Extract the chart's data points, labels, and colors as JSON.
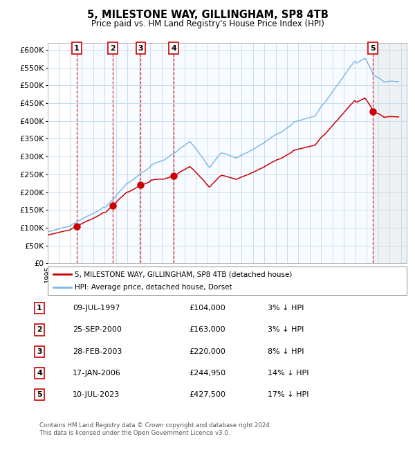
{
  "title": "5, MILESTONE WAY, GILLINGHAM, SP8 4TB",
  "subtitle": "Price paid vs. HM Land Registry's House Price Index (HPI)",
  "xlim": [
    1995.0,
    2026.5
  ],
  "ylim": [
    0,
    620000
  ],
  "ytick_labels": [
    "£0",
    "£50K",
    "£100K",
    "£150K",
    "£200K",
    "£250K",
    "£300K",
    "£350K",
    "£400K",
    "£450K",
    "£500K",
    "£550K",
    "£600K"
  ],
  "sales": [
    {
      "num": 1,
      "date": "09-JUL-1997",
      "year": 1997.53,
      "price": 104000,
      "hpi_pct": "3% ↓ HPI"
    },
    {
      "num": 2,
      "date": "25-SEP-2000",
      "year": 2000.73,
      "price": 163000,
      "hpi_pct": "3% ↓ HPI"
    },
    {
      "num": 3,
      "date": "28-FEB-2003",
      "year": 2003.16,
      "price": 220000,
      "hpi_pct": "8% ↓ HPI"
    },
    {
      "num": 4,
      "date": "17-JAN-2006",
      "year": 2006.05,
      "price": 244950,
      "hpi_pct": "14% ↓ HPI"
    },
    {
      "num": 5,
      "date": "10-JUL-2023",
      "year": 2023.53,
      "price": 427500,
      "hpi_pct": "17% ↓ HPI"
    }
  ],
  "hpi_color": "#7ab8e8",
  "price_color": "#cc0000",
  "bg_color": "#ffffff",
  "grid_color": "#c8d8ea",
  "shade_color": "#ddeeff",
  "legend_line1": "5, MILESTONE WAY, GILLINGHAM, SP8 4TB (detached house)",
  "legend_line2": "HPI: Average price, detached house, Dorset",
  "footnote1": "Contains HM Land Registry data © Crown copyright and database right 2024.",
  "footnote2": "This data is licensed under the Open Government Licence v3.0."
}
